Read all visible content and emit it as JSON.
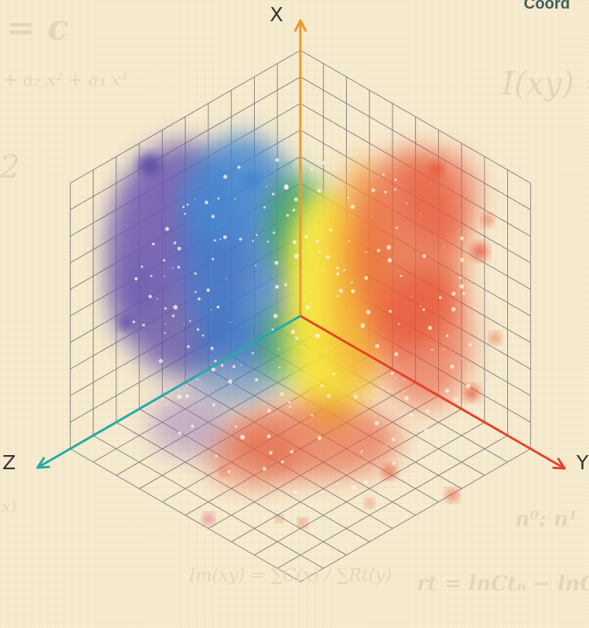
{
  "title": "Coord",
  "axes": {
    "x": {
      "label": "X",
      "color": "#ec9a2b"
    },
    "y": {
      "label": "Y",
      "color": "#e2442b"
    },
    "z": {
      "label": "Z",
      "color": "#27aaa6"
    }
  },
  "background_formulas": {
    "f1": "= c",
    "f2": "+ a₂ x² + a₃ x³",
    "f3": "I(xy) =",
    "f4": "n⁰: n¹",
    "f5": "Im(xy) = ∑C(x) / ∑Rt(y)",
    "f6": "rt = lnCtₙ − lnC",
    "f7": "2",
    "f8": "x)"
  },
  "splash_colors": [
    "#5b4aa8",
    "#3d7fcd",
    "#3aa84a",
    "#f5e232",
    "#f4a23b",
    "#e64a2e"
  ],
  "colors": {
    "background": "#f7ebcf",
    "grid": "#7a7a7a",
    "minor_grid": "#eadcbc"
  }
}
